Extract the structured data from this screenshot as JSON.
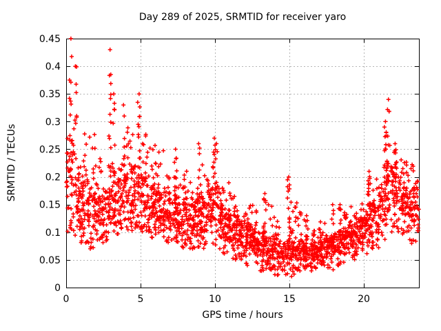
{
  "chart_data": {
    "type": "scatter",
    "title": "Day 289 of 2025, SRMTID for receiver yaro",
    "xlabel": "GPS time / hours",
    "ylabel": "SRMTID / TECUs",
    "xlim": [
      0,
      23.7
    ],
    "ylim": [
      0,
      0.45
    ],
    "xticks": [
      0,
      5,
      10,
      15,
      20
    ],
    "yticks": [
      0,
      0.05,
      0.1,
      0.15,
      0.2,
      0.25,
      0.3,
      0.35,
      0.4,
      0.45
    ],
    "grid": true,
    "legend": "none",
    "marker": "plus",
    "colors": {
      "marker": "#ff0000",
      "grid": "#b4b4b4",
      "axis": "#000000",
      "background": "#ffffff"
    },
    "series": [
      {
        "name": "SRMTID",
        "bins": [
          {
            "h0": 0.0,
            "h1": 0.5,
            "n": 52,
            "lo": 0.1,
            "q1": 0.14,
            "q3": 0.27,
            "hi": 0.45,
            "spike": 0.32
          },
          {
            "h0": 0.5,
            "h1": 1.0,
            "n": 52,
            "lo": 0.09,
            "q1": 0.12,
            "q3": 0.22,
            "hi": 0.4,
            "spike": 0.62
          },
          {
            "h0": 1.0,
            "h1": 1.5,
            "n": 52,
            "lo": 0.08,
            "q1": 0.11,
            "q3": 0.19,
            "hi": 0.3,
            "spike": null
          },
          {
            "h0": 1.5,
            "h1": 2.0,
            "n": 52,
            "lo": 0.07,
            "q1": 0.11,
            "q3": 0.17,
            "hi": 0.28,
            "spike": null
          },
          {
            "h0": 2.0,
            "h1": 2.5,
            "n": 52,
            "lo": 0.08,
            "q1": 0.11,
            "q3": 0.16,
            "hi": 0.25,
            "spike": null
          },
          {
            "h0": 2.5,
            "h1": 3.0,
            "n": 52,
            "lo": 0.08,
            "q1": 0.12,
            "q3": 0.18,
            "hi": 0.43,
            "spike": 2.95
          },
          {
            "h0": 3.0,
            "h1": 3.5,
            "n": 52,
            "lo": 0.09,
            "q1": 0.12,
            "q3": 0.19,
            "hi": 0.35,
            "spike": 3.2
          },
          {
            "h0": 3.5,
            "h1": 4.0,
            "n": 52,
            "lo": 0.1,
            "q1": 0.13,
            "q3": 0.22,
            "hi": 0.33,
            "spike": 3.85
          },
          {
            "h0": 4.0,
            "h1": 4.5,
            "n": 52,
            "lo": 0.1,
            "q1": 0.13,
            "q3": 0.21,
            "hi": 0.3,
            "spike": null
          },
          {
            "h0": 4.5,
            "h1": 5.0,
            "n": 52,
            "lo": 0.1,
            "q1": 0.14,
            "q3": 0.22,
            "hi": 0.35,
            "spike": 4.9
          },
          {
            "h0": 5.0,
            "h1": 5.5,
            "n": 52,
            "lo": 0.1,
            "q1": 0.13,
            "q3": 0.2,
            "hi": 0.28,
            "spike": null
          },
          {
            "h0": 5.5,
            "h1": 6.0,
            "n": 52,
            "lo": 0.09,
            "q1": 0.12,
            "q3": 0.18,
            "hi": 0.26,
            "spike": null
          },
          {
            "h0": 6.0,
            "h1": 6.5,
            "n": 52,
            "lo": 0.08,
            "q1": 0.12,
            "q3": 0.17,
            "hi": 0.25,
            "spike": null
          },
          {
            "h0": 6.5,
            "h1": 7.0,
            "n": 52,
            "lo": 0.08,
            "q1": 0.11,
            "q3": 0.17,
            "hi": 0.25,
            "spike": null
          },
          {
            "h0": 7.0,
            "h1": 7.5,
            "n": 52,
            "lo": 0.07,
            "q1": 0.1,
            "q3": 0.16,
            "hi": 0.25,
            "spike": 7.35
          },
          {
            "h0": 7.5,
            "h1": 8.0,
            "n": 52,
            "lo": 0.06,
            "q1": 0.1,
            "q3": 0.15,
            "hi": 0.22,
            "spike": null
          },
          {
            "h0": 8.0,
            "h1": 8.5,
            "n": 52,
            "lo": 0.07,
            "q1": 0.1,
            "q3": 0.15,
            "hi": 0.22,
            "spike": null
          },
          {
            "h0": 8.5,
            "h1": 9.0,
            "n": 52,
            "lo": 0.07,
            "q1": 0.1,
            "q3": 0.16,
            "hi": 0.26,
            "spike": 8.9
          },
          {
            "h0": 9.0,
            "h1": 9.5,
            "n": 52,
            "lo": 0.07,
            "q1": 0.1,
            "q3": 0.16,
            "hi": 0.23,
            "spike": null
          },
          {
            "h0": 9.5,
            "h1": 10.0,
            "n": 52,
            "lo": 0.08,
            "q1": 0.12,
            "q3": 0.2,
            "hi": 0.27,
            "spike": 9.95
          },
          {
            "h0": 10.0,
            "h1": 10.5,
            "n": 52,
            "lo": 0.07,
            "q1": 0.11,
            "q3": 0.18,
            "hi": 0.26,
            "spike": 10.1
          },
          {
            "h0": 10.5,
            "h1": 11.0,
            "n": 52,
            "lo": 0.06,
            "q1": 0.09,
            "q3": 0.14,
            "hi": 0.19,
            "spike": null
          },
          {
            "h0": 11.0,
            "h1": 11.5,
            "n": 52,
            "lo": 0.05,
            "q1": 0.08,
            "q3": 0.13,
            "hi": 0.17,
            "spike": null
          },
          {
            "h0": 11.5,
            "h1": 12.0,
            "n": 52,
            "lo": 0.05,
            "q1": 0.08,
            "q3": 0.12,
            "hi": 0.16,
            "spike": null
          },
          {
            "h0": 12.0,
            "h1": 12.5,
            "n": 52,
            "lo": 0.04,
            "q1": 0.07,
            "q3": 0.11,
            "hi": 0.16,
            "spike": null
          },
          {
            "h0": 12.5,
            "h1": 13.0,
            "n": 52,
            "lo": 0.04,
            "q1": 0.06,
            "q3": 0.1,
            "hi": 0.15,
            "spike": null
          },
          {
            "h0": 13.0,
            "h1": 13.5,
            "n": 52,
            "lo": 0.03,
            "q1": 0.06,
            "q3": 0.1,
            "hi": 0.17,
            "spike": 13.35
          },
          {
            "h0": 13.5,
            "h1": 14.0,
            "n": 52,
            "lo": 0.03,
            "q1": 0.05,
            "q3": 0.09,
            "hi": 0.15,
            "spike": null
          },
          {
            "h0": 14.0,
            "h1": 14.5,
            "n": 52,
            "lo": 0.02,
            "q1": 0.05,
            "q3": 0.08,
            "hi": 0.12,
            "spike": null
          },
          {
            "h0": 14.5,
            "h1": 15.0,
            "n": 52,
            "lo": 0.02,
            "q1": 0.05,
            "q3": 0.08,
            "hi": 0.2,
            "spike": 14.95
          },
          {
            "h0": 15.0,
            "h1": 15.5,
            "n": 52,
            "lo": 0.02,
            "q1": 0.05,
            "q3": 0.08,
            "hi": 0.16,
            "spike": null
          },
          {
            "h0": 15.5,
            "h1": 16.0,
            "n": 52,
            "lo": 0.03,
            "q1": 0.05,
            "q3": 0.08,
            "hi": 0.14,
            "spike": null
          },
          {
            "h0": 16.0,
            "h1": 16.5,
            "n": 52,
            "lo": 0.03,
            "q1": 0.05,
            "q3": 0.08,
            "hi": 0.13,
            "spike": 16.15
          },
          {
            "h0": 16.5,
            "h1": 17.0,
            "n": 52,
            "lo": 0.03,
            "q1": 0.05,
            "q3": 0.08,
            "hi": 0.12,
            "spike": null
          },
          {
            "h0": 17.0,
            "h1": 17.5,
            "n": 52,
            "lo": 0.03,
            "q1": 0.05,
            "q3": 0.09,
            "hi": 0.12,
            "spike": null
          },
          {
            "h0": 17.5,
            "h1": 18.0,
            "n": 52,
            "lo": 0.03,
            "q1": 0.06,
            "q3": 0.09,
            "hi": 0.15,
            "spike": 17.9
          },
          {
            "h0": 18.0,
            "h1": 18.5,
            "n": 52,
            "lo": 0.04,
            "q1": 0.06,
            "q3": 0.1,
            "hi": 0.15,
            "spike": 18.4
          },
          {
            "h0": 18.5,
            "h1": 19.0,
            "n": 52,
            "lo": 0.04,
            "q1": 0.07,
            "q3": 0.1,
            "hi": 0.14,
            "spike": null
          },
          {
            "h0": 19.0,
            "h1": 19.5,
            "n": 52,
            "lo": 0.05,
            "q1": 0.07,
            "q3": 0.11,
            "hi": 0.15,
            "spike": null
          },
          {
            "h0": 19.5,
            "h1": 20.0,
            "n": 52,
            "lo": 0.06,
            "q1": 0.08,
            "q3": 0.12,
            "hi": 0.16,
            "spike": null
          },
          {
            "h0": 20.0,
            "h1": 20.5,
            "n": 52,
            "lo": 0.06,
            "q1": 0.09,
            "q3": 0.14,
            "hi": 0.21,
            "spike": 20.35
          },
          {
            "h0": 20.5,
            "h1": 21.0,
            "n": 52,
            "lo": 0.07,
            "q1": 0.1,
            "q3": 0.15,
            "hi": 0.2,
            "spike": null
          },
          {
            "h0": 21.0,
            "h1": 21.5,
            "n": 52,
            "lo": 0.08,
            "q1": 0.12,
            "q3": 0.19,
            "hi": 0.3,
            "spike": 21.45
          },
          {
            "h0": 21.5,
            "h1": 22.0,
            "n": 52,
            "lo": 0.1,
            "q1": 0.14,
            "q3": 0.22,
            "hi": 0.34,
            "spike": 21.65
          },
          {
            "h0": 22.0,
            "h1": 22.5,
            "n": 52,
            "lo": 0.1,
            "q1": 0.13,
            "q3": 0.2,
            "hi": 0.26,
            "spike": 22.1
          },
          {
            "h0": 22.5,
            "h1": 23.0,
            "n": 52,
            "lo": 0.09,
            "q1": 0.13,
            "q3": 0.18,
            "hi": 0.24,
            "spike": null
          },
          {
            "h0": 23.0,
            "h1": 23.5,
            "n": 52,
            "lo": 0.08,
            "q1": 0.12,
            "q3": 0.18,
            "hi": 0.23,
            "spike": null
          },
          {
            "h0": 23.5,
            "h1": 23.7,
            "n": 16,
            "lo": 0.1,
            "q1": 0.12,
            "q3": 0.17,
            "hi": 0.2,
            "spike": null
          }
        ]
      }
    ]
  }
}
